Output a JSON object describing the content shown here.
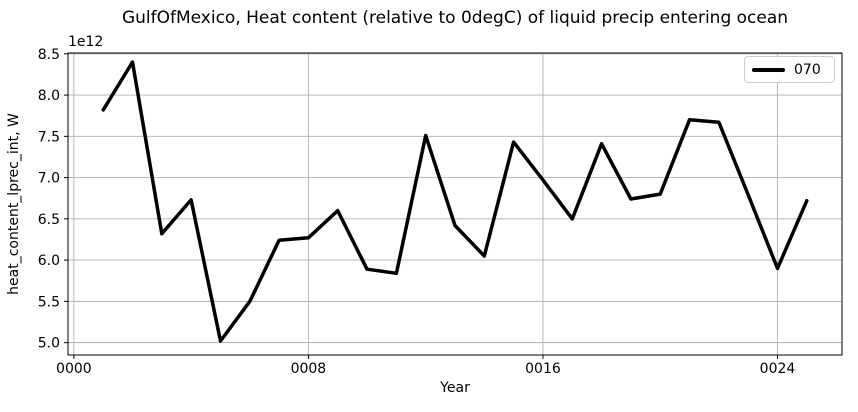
{
  "chart_data": {
    "type": "line",
    "title": "GulfOfMexico, Heat content (relative to 0degC) of liquid precip entering ocean",
    "xlabel": "Year",
    "ylabel": "heat_content_lprec_int, W",
    "y_offset_text": "1e12",
    "values_unit": "1e12 W",
    "grid": true,
    "grid_color": "#b0b0b0",
    "background_color": "#ffffff",
    "legend_position": "upper right",
    "xlim": [
      -0.2,
      26.2
    ],
    "ylim": [
      4.85,
      8.51
    ],
    "x_ticks": {
      "positions": [
        0,
        8,
        16,
        24
      ],
      "labels": [
        "0000",
        "0008",
        "0016",
        "0024"
      ]
    },
    "y_ticks": {
      "positions": [
        5.0,
        5.5,
        6.0,
        6.5,
        7.0,
        7.5,
        8.0,
        8.5
      ],
      "labels": [
        "5.0",
        "5.5",
        "6.0",
        "6.5",
        "7.0",
        "7.5",
        "8.0",
        "8.5"
      ]
    },
    "series": [
      {
        "name": "070",
        "color": "#000000",
        "linewidth": 3.5,
        "x": [
          1,
          2,
          3,
          4,
          5,
          6,
          7,
          8,
          9,
          10,
          11,
          12,
          13,
          14,
          15,
          16,
          17,
          18,
          19,
          20,
          21,
          22,
          23,
          24,
          25
        ],
        "values": [
          7.82,
          8.4,
          6.32,
          6.73,
          5.02,
          5.5,
          6.24,
          6.27,
          6.6,
          5.89,
          5.84,
          7.51,
          6.42,
          6.05,
          7.43,
          6.97,
          6.5,
          7.41,
          6.74,
          6.8,
          7.7,
          7.67,
          6.79,
          5.9,
          6.72
        ]
      }
    ]
  }
}
